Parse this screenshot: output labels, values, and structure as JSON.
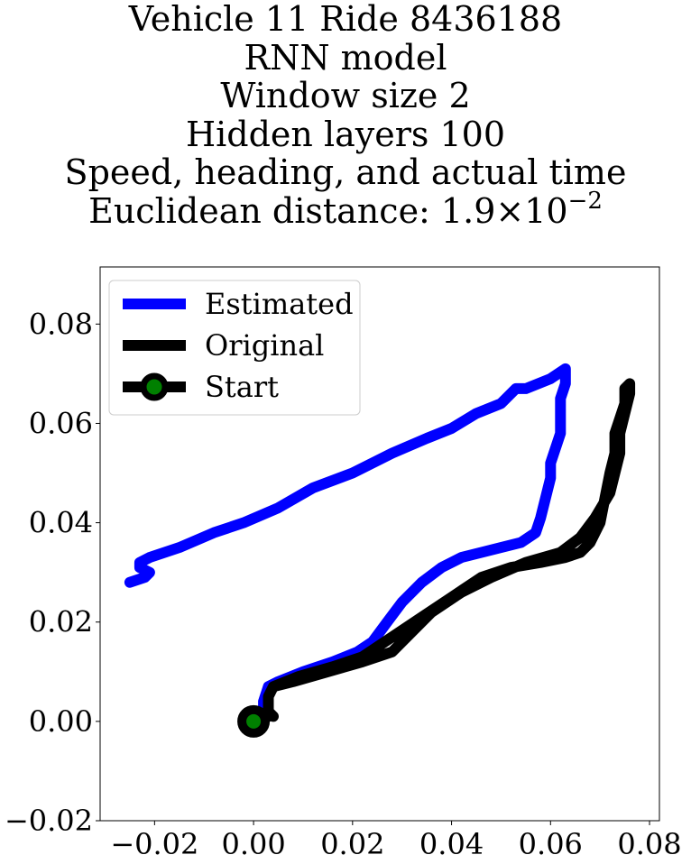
{
  "chart_data": {
    "type": "line",
    "title_lines": [
      "Vehicle 11 Ride 8436188",
      "RNN model",
      "Window size 2",
      "Hidden layers 100",
      "Speed, heading, and actual time"
    ],
    "title_distance_prefix": "Euclidean distance: 1.9",
    "title_distance_times": "×",
    "title_distance_base": "10",
    "title_distance_exponent": "−2",
    "xlabel": "",
    "ylabel": "",
    "xlim": [
      -0.031,
      0.082
    ],
    "ylim": [
      -0.02,
      0.0915
    ],
    "x_ticks": [
      -0.02,
      0.0,
      0.02,
      0.04,
      0.06,
      0.08
    ],
    "x_tick_labels": [
      "−0.02",
      "0.00",
      "0.02",
      "0.04",
      "0.06",
      "0.08"
    ],
    "y_ticks": [
      -0.02,
      0.0,
      0.02,
      0.04,
      0.06,
      0.08
    ],
    "y_tick_labels": [
      "−0.02",
      "0.00",
      "0.02",
      "0.04",
      "0.06",
      "0.08"
    ],
    "grid": false,
    "legend_position": "top-left",
    "series": [
      {
        "name": "Estimated",
        "color": "#0000ff",
        "points": [
          [
            0.002,
            0.001
          ],
          [
            0.002,
            0.004
          ],
          [
            0.003,
            0.007
          ],
          [
            0.005,
            0.008
          ],
          [
            0.01,
            0.01
          ],
          [
            0.016,
            0.012
          ],
          [
            0.021,
            0.014
          ],
          [
            0.024,
            0.016
          ],
          [
            0.027,
            0.02
          ],
          [
            0.03,
            0.024
          ],
          [
            0.034,
            0.028
          ],
          [
            0.038,
            0.031
          ],
          [
            0.042,
            0.033
          ],
          [
            0.046,
            0.034
          ],
          [
            0.05,
            0.035
          ],
          [
            0.054,
            0.036
          ],
          [
            0.057,
            0.038
          ],
          [
            0.058,
            0.041
          ],
          [
            0.059,
            0.045
          ],
          [
            0.06,
            0.049
          ],
          [
            0.06,
            0.052
          ],
          [
            0.061,
            0.055
          ],
          [
            0.062,
            0.058
          ],
          [
            0.062,
            0.062
          ],
          [
            0.062,
            0.065
          ],
          [
            0.063,
            0.068
          ],
          [
            0.063,
            0.071
          ],
          [
            0.06,
            0.069
          ],
          [
            0.055,
            0.067
          ],
          [
            0.053,
            0.067
          ],
          [
            0.05,
            0.064
          ],
          [
            0.045,
            0.062
          ],
          [
            0.04,
            0.059
          ],
          [
            0.035,
            0.057
          ],
          [
            0.028,
            0.054
          ],
          [
            0.02,
            0.05
          ],
          [
            0.012,
            0.047
          ],
          [
            0.005,
            0.043
          ],
          [
            -0.002,
            0.04
          ],
          [
            -0.008,
            0.038
          ],
          [
            -0.015,
            0.035
          ],
          [
            -0.021,
            0.033
          ],
          [
            -0.023,
            0.032
          ],
          [
            -0.023,
            0.031
          ],
          [
            -0.021,
            0.03
          ],
          [
            -0.022,
            0.029
          ],
          [
            -0.025,
            0.028
          ]
        ]
      },
      {
        "name": "Original",
        "color": "#000000",
        "points": [
          [
            0.0,
            0.0
          ],
          [
            0.003,
            0.001
          ],
          [
            0.003,
            0.003
          ],
          [
            0.003,
            0.005
          ],
          [
            0.004,
            0.007
          ],
          [
            0.009,
            0.009
          ],
          [
            0.016,
            0.011
          ],
          [
            0.022,
            0.013
          ],
          [
            0.028,
            0.017
          ],
          [
            0.034,
            0.021
          ],
          [
            0.04,
            0.025
          ],
          [
            0.046,
            0.029
          ],
          [
            0.052,
            0.031
          ],
          [
            0.058,
            0.032
          ],
          [
            0.063,
            0.033
          ],
          [
            0.066,
            0.034
          ],
          [
            0.068,
            0.036
          ],
          [
            0.07,
            0.04
          ],
          [
            0.071,
            0.045
          ],
          [
            0.072,
            0.05
          ],
          [
            0.073,
            0.054
          ],
          [
            0.073,
            0.058
          ],
          [
            0.074,
            0.061
          ],
          [
            0.075,
            0.064
          ],
          [
            0.075,
            0.067
          ],
          [
            0.076,
            0.068
          ],
          [
            0.076,
            0.066
          ],
          [
            0.075,
            0.062
          ],
          [
            0.074,
            0.058
          ],
          [
            0.074,
            0.054
          ],
          [
            0.073,
            0.05
          ],
          [
            0.072,
            0.046
          ],
          [
            0.069,
            0.041
          ],
          [
            0.066,
            0.037
          ],
          [
            0.062,
            0.034
          ],
          [
            0.055,
            0.032
          ],
          [
            0.048,
            0.029
          ],
          [
            0.042,
            0.026
          ],
          [
            0.036,
            0.022
          ],
          [
            0.032,
            0.018
          ],
          [
            0.028,
            0.014
          ],
          [
            0.022,
            0.012
          ],
          [
            0.015,
            0.01
          ],
          [
            0.008,
            0.008
          ],
          [
            0.004,
            0.007
          ],
          [
            0.003,
            0.005
          ],
          [
            0.003,
            0.002
          ],
          [
            0.004,
            0.001
          ]
        ]
      }
    ],
    "start_marker": {
      "name": "Start",
      "x": 0.0,
      "y": 0.0,
      "edge_color": "#000000",
      "face_color": "#008000"
    }
  }
}
